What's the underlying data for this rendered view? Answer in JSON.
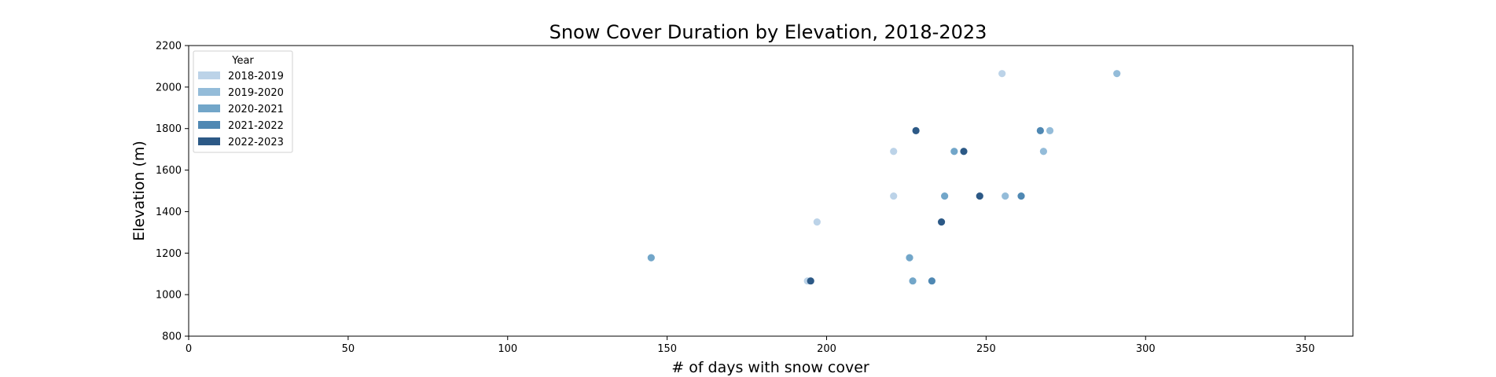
{
  "chart_data": {
    "type": "scatter",
    "title": "Snow Cover Duration by Elevation, 2018-2023",
    "xlabel": "# of days with snow cover",
    "ylabel": "Elevation (m)",
    "xlim": [
      0,
      365
    ],
    "ylim": [
      800,
      2200
    ],
    "xticks": [
      0,
      50,
      100,
      150,
      200,
      250,
      300,
      350
    ],
    "yticks": [
      800,
      1000,
      1200,
      1400,
      1600,
      1800,
      2000,
      2200
    ],
    "grid": false,
    "legend": {
      "title": "Year",
      "placement": "top-left"
    },
    "series": [
      {
        "name": "2018-2019",
        "color": "#bcd3e8",
        "points": [
          {
            "x": 194,
            "y": 1066
          },
          {
            "x": 197,
            "y": 1350
          },
          {
            "x": 221,
            "y": 1475
          },
          {
            "x": 221,
            "y": 1690
          },
          {
            "x": 255,
            "y": 2065
          }
        ]
      },
      {
        "name": "2019-2020",
        "color": "#94bcd9",
        "points": [
          {
            "x": 256,
            "y": 1475
          },
          {
            "x": 268,
            "y": 1690
          },
          {
            "x": 270,
            "y": 1790
          },
          {
            "x": 291,
            "y": 2065
          }
        ]
      },
      {
        "name": "2020-2021",
        "color": "#72a6c9",
        "points": [
          {
            "x": 145,
            "y": 1178
          },
          {
            "x": 226,
            "y": 1178
          },
          {
            "x": 227,
            "y": 1066
          },
          {
            "x": 237,
            "y": 1475
          },
          {
            "x": 240,
            "y": 1690
          }
        ]
      },
      {
        "name": "2021-2022",
        "color": "#4f88b3",
        "points": [
          {
            "x": 233,
            "y": 1066
          },
          {
            "x": 261,
            "y": 1475
          },
          {
            "x": 267,
            "y": 1790
          }
        ]
      },
      {
        "name": "2022-2023",
        "color": "#2c5986",
        "points": [
          {
            "x": 195,
            "y": 1066
          },
          {
            "x": 228,
            "y": 1790
          },
          {
            "x": 236,
            "y": 1350
          },
          {
            "x": 243,
            "y": 1690
          },
          {
            "x": 248,
            "y": 1475
          }
        ]
      }
    ]
  }
}
